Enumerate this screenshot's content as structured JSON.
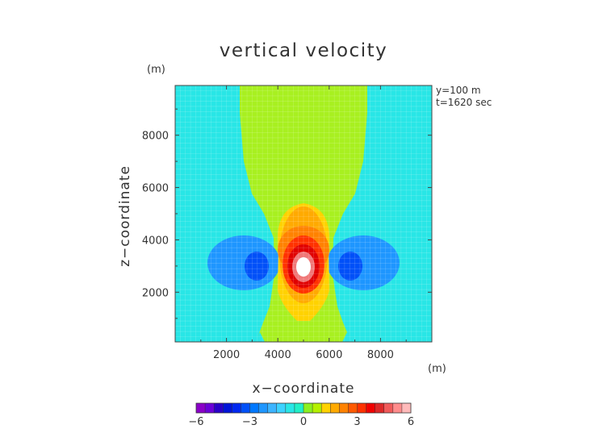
{
  "chart_data": {
    "type": "heatmap",
    "title": "vertical velocity",
    "xlabel": "x−coordinate",
    "ylabel": "z−coordinate",
    "x_unit": "(m)",
    "y_unit": "(m)",
    "annotations": [
      "y=100 m",
      "t=1620 sec"
    ],
    "xlim": [
      0,
      10000
    ],
    "ylim": [
      100,
      9900
    ],
    "x_ticks": [
      2000,
      4000,
      6000,
      8000
    ],
    "x_tick_labels": [
      "2000",
      "4000",
      "6000",
      "8000"
    ],
    "y_ticks": [
      2000,
      4000,
      6000,
      8000
    ],
    "y_tick_labels": [
      "2000",
      "4000",
      "6000",
      "8000"
    ],
    "grid": true,
    "colorbar": {
      "min": -6,
      "max": 6,
      "levels": [
        -6,
        -5.5,
        -5,
        -4.5,
        -4,
        -3.5,
        -3,
        -2.5,
        -2,
        -1.5,
        -1,
        -0.5,
        0,
        0.5,
        1,
        1.5,
        2,
        2.5,
        3,
        3.5,
        4,
        4.5,
        5,
        5.5,
        6
      ],
      "tick_values": [
        -6,
        -3,
        0,
        3,
        6
      ],
      "tick_labels": [
        "−6",
        "−3",
        "0",
        "3",
        "6"
      ],
      "colors": [
        "#8a00c8",
        "#6a00d8",
        "#2a00c8",
        "#0014d8",
        "#0028f0",
        "#0050f8",
        "#0078ff",
        "#1e96ff",
        "#3cb4ff",
        "#3cd2ff",
        "#28e6e6",
        "#20f0c8",
        "#8cf020",
        "#b4f000",
        "#ffd200",
        "#ffaa00",
        "#ff8200",
        "#ff5a00",
        "#ff3200",
        "#f00000",
        "#dc2828",
        "#f05a5a",
        "#ff8c8c",
        "#ffbaba"
      ]
    },
    "features": [
      {
        "name": "updraft core",
        "x_center": 4950,
        "z_center": 3000,
        "max_value": 6
      },
      {
        "name": "left downdraft",
        "x_center": 3200,
        "z_center": 3100,
        "min_value": -2.5
      },
      {
        "name": "right downdraft",
        "x_center": 6800,
        "z_center": 3100,
        "min_value": -2.5
      },
      {
        "name": "weak updraft plume",
        "x_range": [
          2500,
          7400
        ],
        "z_top": 9900,
        "value": 0.5
      }
    ],
    "background_value": 0
  }
}
